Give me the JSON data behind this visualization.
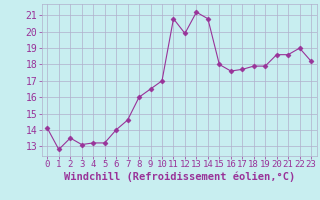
{
  "x": [
    0,
    1,
    2,
    3,
    4,
    5,
    6,
    7,
    8,
    9,
    10,
    11,
    12,
    13,
    14,
    15,
    16,
    17,
    18,
    19,
    20,
    21,
    22,
    23
  ],
  "y": [
    14.1,
    12.8,
    13.5,
    13.1,
    13.2,
    13.2,
    14.0,
    14.6,
    16.0,
    16.5,
    17.0,
    20.8,
    19.9,
    21.2,
    20.8,
    18.0,
    17.6,
    17.7,
    17.9,
    17.9,
    18.6,
    18.6,
    19.0,
    18.2
  ],
  "line_color": "#993399",
  "marker": "D",
  "marker_size": 2.5,
  "bg_color": "#c8eef0",
  "grid_color": "#b0b0cc",
  "xlabel": "Windchill (Refroidissement éolien,°C)",
  "ylabel_ticks": [
    13,
    14,
    15,
    16,
    17,
    18,
    19,
    20,
    21
  ],
  "ylim": [
    12.4,
    21.7
  ],
  "xlim": [
    -0.5,
    23.5
  ],
  "tick_color": "#993399",
  "label_color": "#993399",
  "font_size_xlabel": 7.5,
  "font_size_ytick": 7,
  "font_size_xtick": 6.5
}
